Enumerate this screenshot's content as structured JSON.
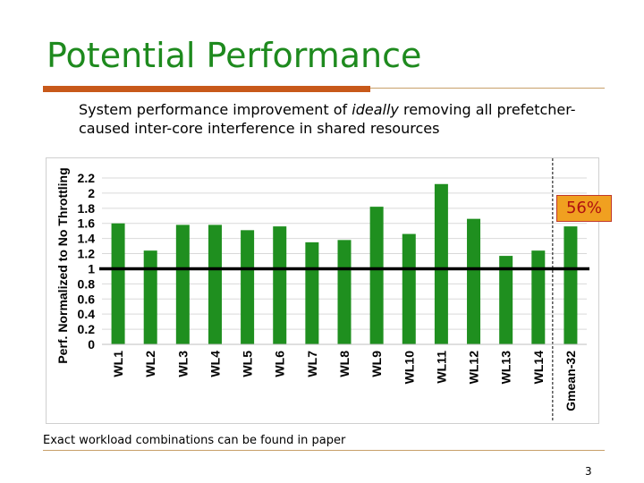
{
  "slide": {
    "title": "Potential Performance",
    "subtitle_part1": "System performance improvement of ",
    "subtitle_emph": "ideally",
    "subtitle_part2": " removing all prefetcher-caused inter-core interference in shared resources",
    "footnote": "Exact workload combinations can be found in paper",
    "page_number": "3",
    "callout": "56%"
  },
  "colors": {
    "title": "#1e8a1e",
    "bar": "#1f8f1f",
    "accent_rule": "#c8591a",
    "callout_fill": "#f0a020",
    "callout_text": "#b01010"
  },
  "chart_data": {
    "type": "bar",
    "ylabel": "Perf. Normalized to No Throttling",
    "xlabel": "",
    "ylim": [
      0,
      2.2
    ],
    "yticks": [
      "0",
      "0.2",
      "0.4",
      "0.6",
      "0.8",
      "1",
      "1.2",
      "1.4",
      "1.6",
      "1.8",
      "2",
      "2.2"
    ],
    "categories": [
      "WL1",
      "WL2",
      "WL3",
      "WL4",
      "WL5",
      "WL6",
      "WL7",
      "WL8",
      "WL9",
      "WL10",
      "WL11",
      "WL12",
      "WL13",
      "WL14",
      "Gmean-32"
    ],
    "values": [
      1.6,
      1.24,
      1.58,
      1.58,
      1.51,
      1.56,
      1.35,
      1.38,
      1.82,
      1.46,
      2.12,
      1.66,
      1.17,
      1.24,
      1.56
    ],
    "reference_line": 1,
    "grid": true,
    "legend": "none"
  }
}
